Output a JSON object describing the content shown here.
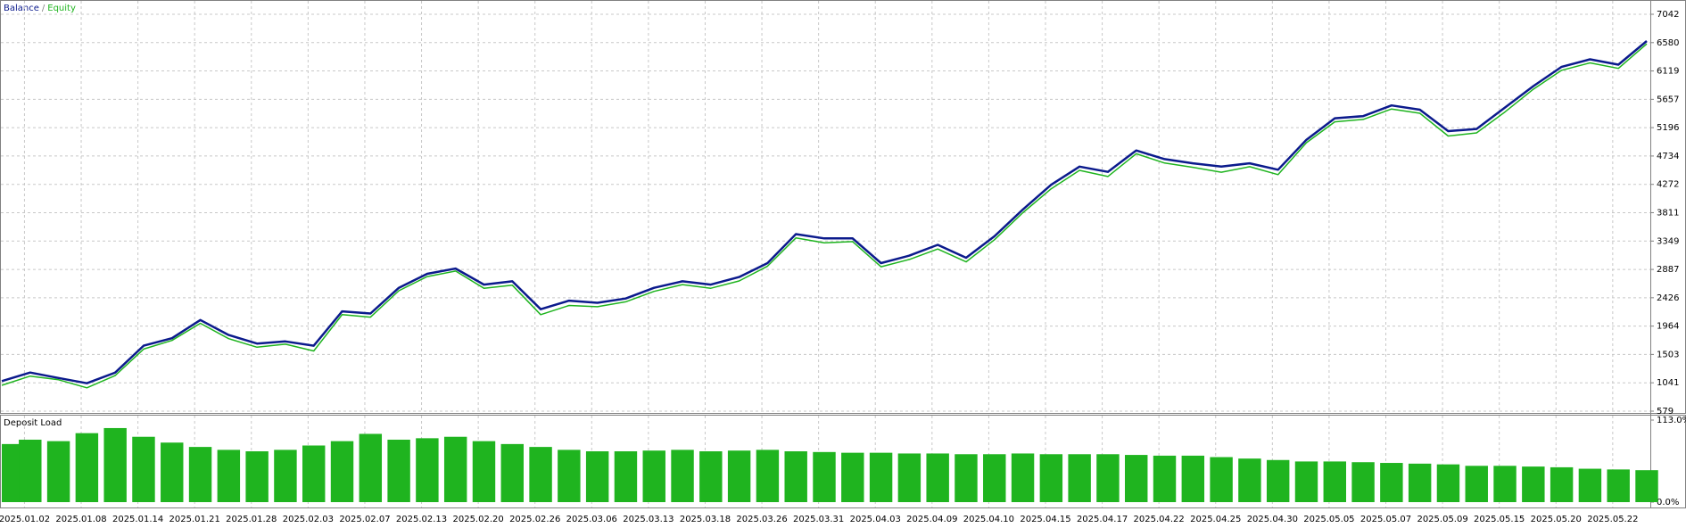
{
  "chart_data": [
    {
      "type": "line",
      "legend_separator": "/",
      "x": [
        0,
        5,
        10,
        15,
        20,
        25,
        30,
        35,
        40,
        45,
        50,
        55,
        60,
        65,
        70,
        75,
        80,
        85,
        90,
        95,
        100,
        105,
        110,
        115,
        120,
        125,
        130,
        135,
        140,
        145,
        150,
        155,
        160,
        165,
        170,
        175,
        180,
        185,
        190,
        195,
        200,
        205,
        210,
        215,
        220,
        225,
        230,
        235,
        240,
        245,
        250,
        255,
        260,
        265,
        270,
        275,
        280,
        285,
        290
      ],
      "xlim": [
        0,
        290
      ],
      "series": [
        {
          "name": "Balance",
          "color": "#0b1a8c",
          "values": [
            1068,
            1208,
            1120,
            1033,
            1208,
            1645,
            1767,
            2064,
            1819,
            1680,
            1715,
            1645,
            2204,
            2169,
            2588,
            2815,
            2902,
            2640,
            2693,
            2239,
            2378,
            2343,
            2413,
            2588,
            2693,
            2640,
            2763,
            2990,
            3462,
            3392,
            3392,
            2990,
            3112,
            3287,
            3077,
            3427,
            3863,
            4265,
            4562,
            4475,
            4824,
            4684,
            4615,
            4562,
            4615,
            4510,
            4999,
            5348,
            5383,
            5558,
            5488,
            5139,
            5174,
            5523,
            5872,
            6187,
            6309,
            6222,
            6606
          ]
        },
        {
          "name": "Equity",
          "color": "#1fb41f",
          "values": [
            1000,
            1150,
            1090,
            960,
            1160,
            1590,
            1730,
            2010,
            1760,
            1620,
            1670,
            1560,
            2150,
            2110,
            2540,
            2770,
            2860,
            2580,
            2630,
            2150,
            2300,
            2280,
            2360,
            2530,
            2640,
            2580,
            2700,
            2940,
            3400,
            3320,
            3340,
            2930,
            3050,
            3220,
            3010,
            3370,
            3810,
            4200,
            4500,
            4400,
            4770,
            4620,
            4550,
            4470,
            4560,
            4430,
            4950,
            5290,
            5330,
            5500,
            5430,
            5060,
            5110,
            5450,
            5820,
            6130,
            6250,
            6160,
            6560
          ]
        }
      ],
      "ylim": [
        579,
        7042
      ],
      "yticks": [
        579,
        1041,
        1503,
        1964,
        2426,
        2887,
        3349,
        3811,
        4272,
        4734,
        5196,
        5657,
        6119,
        6580,
        7042
      ],
      "grid": true
    },
    {
      "type": "bar",
      "title": "Deposit Load",
      "color": "#1fb41f",
      "x": [
        0,
        5,
        10,
        15,
        20,
        25,
        30,
        35,
        40,
        45,
        50,
        55,
        60,
        65,
        70,
        75,
        80,
        85,
        90,
        95,
        100,
        105,
        110,
        115,
        120,
        125,
        130,
        135,
        140,
        145,
        150,
        155,
        160,
        165,
        170,
        175,
        180,
        185,
        190,
        195,
        200,
        205,
        210,
        215,
        220,
        225,
        230,
        235,
        240,
        245,
        250,
        255,
        260,
        265,
        270,
        275,
        280,
        285,
        290
      ],
      "values": [
        80,
        86,
        84,
        95,
        102,
        90,
        82,
        76,
        72,
        70,
        72,
        78,
        84,
        94,
        86,
        88,
        90,
        84,
        80,
        76,
        72,
        70,
        70,
        71,
        72,
        70,
        71,
        72,
        70,
        69,
        68,
        68,
        67,
        67,
        66,
        66,
        67,
        66,
        66,
        66,
        65,
        64,
        64,
        62,
        60,
        58,
        56,
        56,
        55,
        54,
        53,
        52,
        50,
        50,
        49,
        48,
        46,
        45,
        44
      ],
      "xlim": [
        0,
        290
      ],
      "ylim": [
        0,
        113
      ],
      "yticks": [
        {
          "value": 0,
          "label": "0.0%"
        },
        {
          "value": 113,
          "label": "113.0%"
        }
      ],
      "xticks": [
        {
          "value": 4,
          "label": "2025.01.02"
        },
        {
          "value": 14,
          "label": "2025.01.08"
        },
        {
          "value": 24,
          "label": "2025.01.14"
        },
        {
          "value": 34,
          "label": "2025.01.21"
        },
        {
          "value": 44,
          "label": "2025.01.28"
        },
        {
          "value": 54,
          "label": "2025.02.03"
        },
        {
          "value": 64,
          "label": "2025.02.07"
        },
        {
          "value": 74,
          "label": "2025.02.13"
        },
        {
          "value": 84,
          "label": "2025.02.20"
        },
        {
          "value": 94,
          "label": "2025.02.26"
        },
        {
          "value": 104,
          "label": "2025.03.06"
        },
        {
          "value": 114,
          "label": "2025.03.13"
        },
        {
          "value": 124,
          "label": "2025.03.18"
        },
        {
          "value": 134,
          "label": "2025.03.26"
        },
        {
          "value": 144,
          "label": "2025.03.31"
        },
        {
          "value": 154,
          "label": "2025.04.03"
        },
        {
          "value": 164,
          "label": "2025.04.09"
        },
        {
          "value": 174,
          "label": "2025.04.10"
        },
        {
          "value": 184,
          "label": "2025.04.15"
        },
        {
          "value": 194,
          "label": "2025.04.17"
        },
        {
          "value": 204,
          "label": "2025.04.22"
        },
        {
          "value": 214,
          "label": "2025.04.25"
        },
        {
          "value": 224,
          "label": "2025.04.30"
        },
        {
          "value": 234,
          "label": "2025.05.05"
        },
        {
          "value": 244,
          "label": "2025.05.07"
        },
        {
          "value": 254,
          "label": "2025.05.09"
        },
        {
          "value": 264,
          "label": "2025.05.15"
        },
        {
          "value": 274,
          "label": "2025.05.20"
        },
        {
          "value": 284,
          "label": "2025.05.22"
        }
      ],
      "grid": true
    }
  ]
}
